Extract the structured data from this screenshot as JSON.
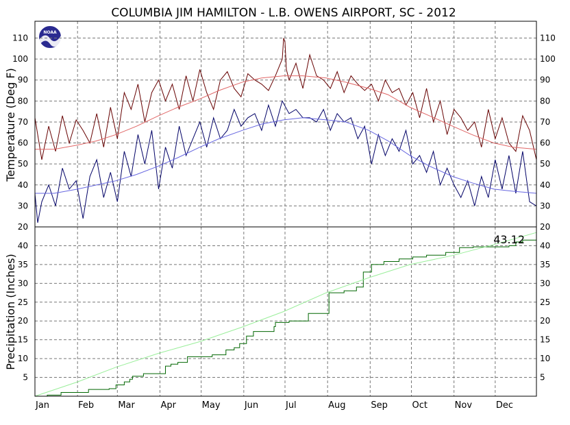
{
  "chart_data": [
    {
      "type": "line",
      "title": "COLUMBIA JIM HAMILTON - L.B. OWENS AIRPORT, SC - 2012",
      "ylabel": "Temperature (Deg F)",
      "ylim": [
        20,
        118
      ],
      "yticks": [
        20,
        30,
        40,
        50,
        60,
        70,
        80,
        90,
        100,
        110
      ],
      "xlabels": [
        "Jan",
        "Feb",
        "Mar",
        "Apr",
        "May",
        "Jun",
        "Jul",
        "Aug",
        "Sep",
        "Oct",
        "Nov",
        "Dec"
      ],
      "grid": true,
      "logo": "NOAA",
      "series": [
        {
          "key": "daily_high",
          "color": "#660000",
          "x": [
            1,
            6,
            11,
            16,
            21,
            26,
            31,
            36,
            41,
            46,
            51,
            56,
            61,
            66,
            71,
            76,
            81,
            86,
            91,
            96,
            101,
            106,
            111,
            116,
            121,
            126,
            131,
            136,
            141,
            146,
            151,
            156,
            161,
            166,
            171,
            176,
            181,
            182,
            183,
            184,
            186,
            191,
            196,
            201,
            206,
            211,
            216,
            221,
            226,
            231,
            236,
            241,
            246,
            251,
            256,
            261,
            266,
            271,
            276,
            281,
            286,
            291,
            296,
            301,
            306,
            311,
            316,
            321,
            326,
            331,
            336,
            341,
            346,
            351,
            356,
            361,
            366
          ],
          "values": [
            72,
            52,
            68,
            56,
            73,
            60,
            71,
            66,
            60,
            74,
            58,
            77,
            62,
            84,
            76,
            88,
            70,
            84,
            90,
            80,
            88,
            76,
            92,
            80,
            95,
            84,
            76,
            90,
            94,
            86,
            82,
            93,
            90,
            88,
            85,
            92,
            100,
            110,
            108,
            95,
            90,
            98,
            86,
            102,
            92,
            90,
            86,
            94,
            84,
            92,
            88,
            85,
            88,
            80,
            90,
            84,
            86,
            78,
            84,
            72,
            86,
            70,
            80,
            64,
            76,
            72,
            66,
            70,
            58,
            76,
            62,
            72,
            60,
            56,
            73,
            66,
            52
          ]
        },
        {
          "key": "daily_low",
          "color": "#000066",
          "x": [
            1,
            3,
            6,
            11,
            16,
            21,
            26,
            31,
            36,
            41,
            46,
            51,
            56,
            61,
            66,
            71,
            76,
            81,
            86,
            91,
            96,
            101,
            106,
            111,
            116,
            121,
            126,
            131,
            136,
            141,
            146,
            151,
            156,
            161,
            166,
            171,
            176,
            181,
            186,
            191,
            196,
            201,
            206,
            211,
            216,
            221,
            226,
            231,
            236,
            241,
            246,
            251,
            256,
            261,
            266,
            271,
            276,
            281,
            286,
            291,
            296,
            301,
            306,
            311,
            316,
            321,
            326,
            331,
            336,
            341,
            346,
            351,
            356,
            361,
            366
          ],
          "values": [
            36,
            22,
            32,
            40,
            30,
            48,
            38,
            42,
            24,
            44,
            52,
            34,
            46,
            32,
            56,
            44,
            64,
            50,
            66,
            38,
            58,
            48,
            68,
            54,
            62,
            70,
            58,
            72,
            62,
            66,
            76,
            68,
            72,
            74,
            66,
            78,
            68,
            80,
            74,
            76,
            72,
            72,
            70,
            76,
            66,
            74,
            70,
            72,
            62,
            68,
            50,
            64,
            54,
            62,
            56,
            66,
            50,
            54,
            46,
            56,
            40,
            48,
            40,
            34,
            42,
            30,
            44,
            34,
            52,
            38,
            54,
            36,
            56,
            32,
            30
          ]
        },
        {
          "key": "normal_high",
          "color": "#e06666",
          "x": [
            1,
            15,
            32,
            46,
            60,
            75,
            91,
            105,
            121,
            135,
            152,
            166,
            182,
            196,
            213,
            227,
            244,
            258,
            274,
            288,
            305,
            319,
            335,
            349,
            366
          ],
          "values": [
            57,
            57,
            59,
            61,
            64,
            68,
            73,
            77,
            81,
            85,
            89,
            91,
            92,
            92,
            91,
            89,
            86,
            83,
            77,
            73,
            68,
            64,
            60,
            58,
            57
          ]
        },
        {
          "key": "normal_low",
          "color": "#6666e0",
          "x": [
            1,
            15,
            32,
            46,
            60,
            75,
            91,
            105,
            121,
            135,
            152,
            166,
            182,
            196,
            213,
            227,
            244,
            258,
            274,
            288,
            305,
            319,
            335,
            349,
            366
          ],
          "values": [
            36,
            36,
            38,
            40,
            42,
            45,
            49,
            53,
            58,
            62,
            66,
            69,
            71,
            72,
            71,
            70,
            66,
            61,
            54,
            49,
            44,
            41,
            38,
            37,
            36
          ]
        }
      ]
    },
    {
      "type": "line",
      "ylabel": "Precipitation (Inches)",
      "ylim": [
        0,
        45
      ],
      "yticks": [
        5,
        10,
        15,
        20,
        25,
        30,
        35,
        40
      ],
      "annotation": "43.12",
      "grid": true,
      "series": [
        {
          "key": "cumulative",
          "color": "#006600",
          "step": true,
          "x": [
            1,
            10,
            20,
            40,
            55,
            60,
            66,
            70,
            72,
            80,
            96,
            100,
            105,
            110,
            112,
            130,
            140,
            146,
            150,
            155,
            160,
            175,
            176,
            186,
            200,
            215,
            226,
            235,
            240,
            246,
            255,
            266,
            276,
            286,
            300,
            310,
            320,
            346,
            351,
            356,
            366
          ],
          "values": [
            0,
            0.3,
            1,
            1.8,
            2,
            3,
            3.8,
            4.5,
            5.3,
            6,
            8,
            8.5,
            9,
            9,
            10.5,
            11,
            12.3,
            12.9,
            14,
            16,
            17.2,
            18.5,
            19.6,
            20,
            22,
            27.5,
            28,
            29,
            33,
            35,
            35.8,
            36.5,
            37,
            37.5,
            38.2,
            39.5,
            39.7,
            40,
            41,
            41.5,
            43.12
          ]
        },
        {
          "key": "normal_cumulative",
          "color": "#99ee99",
          "x": [
            1,
            32,
            60,
            91,
            121,
            152,
            182,
            213,
            244,
            274,
            305,
            335,
            366
          ],
          "values": [
            0,
            3.8,
            7.7,
            11.4,
            14.5,
            18.4,
            22.5,
            27.5,
            31.5,
            35,
            37.4,
            40.3,
            43.5
          ]
        }
      ]
    }
  ]
}
